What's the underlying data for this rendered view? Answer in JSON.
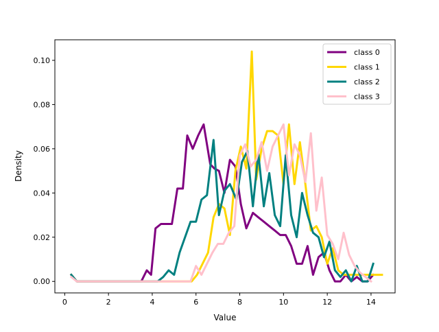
{
  "chart_data": {
    "type": "line",
    "xlabel": "Value",
    "ylabel": "Density",
    "xlim": [
      -0.45,
      15.1
    ],
    "ylim": [
      -0.0052,
      0.1093
    ],
    "xticks": [
      0,
      2,
      4,
      6,
      8,
      10,
      12,
      14
    ],
    "xtick_labels": [
      "0",
      "2",
      "4",
      "6",
      "8",
      "10",
      "12",
      "14"
    ],
    "yticks": [
      0.0,
      0.02,
      0.04,
      0.06,
      0.08,
      0.1
    ],
    "ytick_labels": [
      "0.00",
      "0.02",
      "0.04",
      "0.06",
      "0.08",
      "0.10"
    ],
    "legend_position": "top-right",
    "series": [
      {
        "name": "class 0",
        "color": "#800080",
        "x": [
          0.3,
          0.55,
          0.8,
          1.0,
          1.5,
          2.0,
          2.5,
          3.0,
          3.5,
          3.75,
          3.95,
          4.15,
          4.4,
          4.65,
          4.9,
          5.15,
          5.4,
          5.6,
          5.85,
          6.1,
          6.35,
          6.65,
          6.85,
          7.05,
          7.3,
          7.55,
          7.8,
          8.05,
          8.3,
          8.6,
          8.85,
          9.1,
          9.35,
          9.6,
          9.85,
          10.1,
          10.35,
          10.6,
          10.85,
          11.1,
          11.35,
          11.6,
          11.85,
          12.1,
          12.35,
          12.6,
          12.85,
          13.1,
          13.35,
          13.6,
          13.85,
          14.1
        ],
        "y": [
          0.003,
          0.0,
          0.0,
          0.0,
          0.0,
          0.0,
          0.0,
          0.0,
          0.0,
          0.005,
          0.003,
          0.024,
          0.026,
          0.026,
          0.026,
          0.042,
          0.042,
          0.066,
          0.06,
          0.066,
          0.071,
          0.053,
          0.051,
          0.05,
          0.04,
          0.055,
          0.052,
          0.035,
          0.024,
          0.031,
          0.029,
          0.027,
          0.025,
          0.023,
          0.021,
          0.021,
          0.016,
          0.008,
          0.008,
          0.016,
          0.003,
          0.011,
          0.013,
          0.005,
          0.0,
          0.0,
          0.003,
          0.0,
          0.002,
          0.0,
          0.0,
          0.003
        ]
      },
      {
        "name": "class 1",
        "color": "#FFD700",
        "x": [
          0.3,
          0.55,
          0.8,
          1.0,
          1.5,
          2.0,
          2.5,
          3.0,
          3.5,
          4.0,
          4.5,
          5.0,
          5.5,
          5.8,
          6.05,
          6.3,
          6.55,
          6.8,
          7.05,
          7.3,
          7.55,
          7.8,
          8.05,
          8.3,
          8.55,
          8.75,
          9.0,
          9.25,
          9.5,
          9.75,
          10.0,
          10.25,
          10.5,
          10.75,
          11.0,
          11.25,
          11.5,
          11.75,
          12.0,
          12.25,
          12.5,
          12.75,
          13.0,
          13.25,
          13.5,
          13.75,
          14.0,
          14.25,
          14.5
        ],
        "y": [
          0.003,
          0.0,
          0.0,
          0.0,
          0.0,
          0.0,
          0.0,
          0.0,
          0.0,
          0.0,
          0.0,
          0.0,
          0.0,
          0.0,
          0.003,
          0.008,
          0.013,
          0.029,
          0.035,
          0.033,
          0.021,
          0.05,
          0.061,
          0.051,
          0.104,
          0.046,
          0.06,
          0.068,
          0.068,
          0.066,
          0.044,
          0.071,
          0.044,
          0.063,
          0.044,
          0.023,
          0.025,
          0.02,
          0.008,
          0.015,
          0.005,
          0.003,
          0.003,
          0.003,
          0.003,
          0.003,
          0.003,
          0.003,
          0.003
        ]
      },
      {
        "name": "class 2",
        "color": "#008080",
        "x": [
          0.3,
          0.55,
          0.8,
          1.0,
          1.5,
          2.0,
          2.5,
          3.0,
          3.5,
          4.0,
          4.25,
          4.5,
          4.75,
          5.0,
          5.25,
          5.5,
          5.75,
          6.0,
          6.25,
          6.5,
          6.8,
          7.05,
          7.3,
          7.55,
          7.85,
          8.1,
          8.35,
          8.6,
          8.85,
          9.1,
          9.35,
          9.6,
          9.85,
          10.1,
          10.35,
          10.6,
          10.85,
          11.1,
          11.35,
          11.6,
          11.85,
          12.1,
          12.35,
          12.6,
          12.85,
          13.1,
          13.35,
          13.6,
          13.85,
          14.1
        ],
        "y": [
          0.003,
          0.0,
          0.0,
          0.0,
          0.0,
          0.0,
          0.0,
          0.0,
          0.0,
          0.0,
          0.0,
          0.002,
          0.005,
          0.003,
          0.013,
          0.02,
          0.027,
          0.027,
          0.037,
          0.039,
          0.064,
          0.03,
          0.041,
          0.044,
          0.037,
          0.054,
          0.059,
          0.034,
          0.058,
          0.034,
          0.049,
          0.03,
          0.025,
          0.057,
          0.03,
          0.02,
          0.04,
          0.03,
          0.022,
          0.02,
          0.011,
          0.018,
          0.005,
          0.002,
          0.005,
          0.0,
          0.007,
          0.0,
          0.0,
          0.008
        ]
      },
      {
        "name": "class 3",
        "color": "#FFC0CB",
        "x": [
          0.3,
          0.55,
          0.8,
          1.0,
          1.5,
          2.0,
          2.5,
          3.0,
          3.5,
          4.0,
          4.5,
          5.0,
          5.5,
          5.75,
          6.0,
          6.25,
          6.5,
          6.75,
          7.0,
          7.25,
          7.5,
          7.75,
          8.0,
          8.25,
          8.5,
          8.75,
          9.0,
          9.25,
          9.5,
          9.75,
          10.0,
          10.25,
          10.5,
          10.75,
          11.0,
          11.25,
          11.5,
          11.75,
          12.0,
          12.25,
          12.5,
          12.75,
          13.0,
          13.25,
          13.5,
          13.75,
          14.0
        ],
        "y": [
          0.002,
          0.0,
          0.0,
          0.0,
          0.0,
          0.0,
          0.0,
          0.0,
          0.0,
          0.0,
          0.0,
          0.0,
          0.0,
          0.0,
          0.007,
          0.003,
          0.008,
          0.013,
          0.017,
          0.017,
          0.022,
          0.025,
          0.057,
          0.062,
          0.052,
          0.055,
          0.063,
          0.05,
          0.061,
          0.066,
          0.071,
          0.048,
          0.062,
          0.057,
          0.045,
          0.067,
          0.032,
          0.047,
          0.021,
          0.017,
          0.01,
          0.022,
          0.012,
          0.007,
          0.004,
          0.002,
          0.0
        ]
      }
    ]
  }
}
